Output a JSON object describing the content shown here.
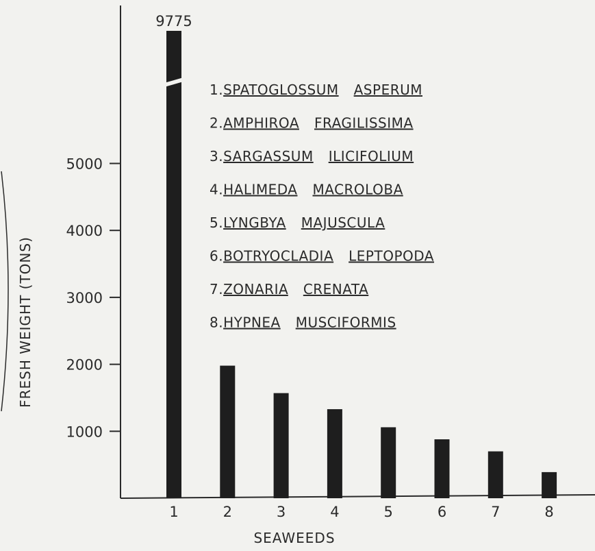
{
  "chart_data": {
    "type": "bar",
    "categories": [
      "1",
      "2",
      "3",
      "4",
      "5",
      "6",
      "7",
      "8"
    ],
    "values": [
      9775,
      1980,
      1570,
      1330,
      1060,
      880,
      700,
      390
    ],
    "value_label": "9775",
    "xlabel": "SEAWEEDS",
    "ylabel": "FRESH WEIGHT (TONS)",
    "yticks": [
      "1000",
      "2000",
      "3000",
      "4000",
      "5000"
    ],
    "ylim": [
      0,
      6000
    ],
    "axis_break": true,
    "grid": false,
    "bar_color": "#1e1e1e",
    "legend": [
      {
        "num": "1.",
        "genus": "SPATOGLOSSUM",
        "species": "ASPERUM",
        "full": "1.SPATOGLOSSUM ASPERUM"
      },
      {
        "num": "2.",
        "genus": "AMPHIROA",
        "species": "FRAGILISSIMA",
        "full": "2.AMPHIROA FRAGILISSIMA"
      },
      {
        "num": "3.",
        "genus": "SARGASSUM",
        "species": "ILICIFOLIUM",
        "full": "3.SARGASSUM ILICIFOLIUM"
      },
      {
        "num": "4.",
        "genus": "HALIMEDA",
        "species": "MACROLOBA",
        "full": "4.HALIMEDA MACROLOBA"
      },
      {
        "num": "5.",
        "genus": "LYNGBYA",
        "species": "MAJUSCULA",
        "full": "5.LYNGBYA MAJUSCULA"
      },
      {
        "num": "6.",
        "genus": "BOTRYOCLADIA",
        "species": "LEPTOPODA",
        "full": "6.BOTRYOCLADIA LEPTOPODA"
      },
      {
        "num": "7.",
        "genus": "ZONARIA",
        "species": "CRENATA",
        "full": "7.ZONARIA CRENATA"
      },
      {
        "num": "8.",
        "genus": "HYPNEA",
        "species": "MUSCIFORMIS",
        "full": "8.HYPNEA MUSCIFORMIS"
      }
    ]
  }
}
